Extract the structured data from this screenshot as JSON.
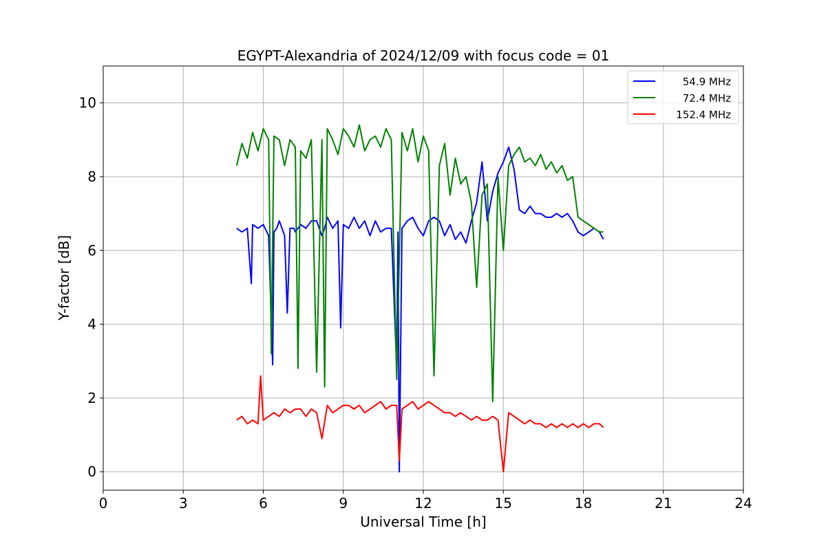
{
  "chart_data": {
    "type": "line",
    "title": "EGYPT-Alexandria of 2024/12/09 with focus code = 01",
    "xlabel": "Universal Time [h]",
    "ylabel": "Y-factor [dB]",
    "xlim": [
      0,
      24
    ],
    "ylim": [
      -0.5,
      11
    ],
    "xticks": [
      0,
      3,
      6,
      9,
      12,
      15,
      18,
      21,
      24
    ],
    "yticks": [
      0,
      2,
      4,
      6,
      8,
      10
    ],
    "grid": true,
    "legend_position": "top-right",
    "series": [
      {
        "name": "54.9 MHz",
        "color": "#0000ff",
        "x": [
          5.0,
          5.2,
          5.4,
          5.55,
          5.6,
          5.8,
          6.0,
          6.2,
          6.35,
          6.4,
          6.5,
          6.6,
          6.8,
          6.9,
          7.0,
          7.15,
          7.2,
          7.4,
          7.6,
          7.8,
          8.0,
          8.2,
          8.3,
          8.4,
          8.6,
          8.8,
          8.9,
          9.0,
          9.2,
          9.4,
          9.6,
          9.8,
          10.0,
          10.2,
          10.4,
          10.6,
          10.8,
          11.0,
          11.05,
          11.1,
          11.2,
          11.4,
          11.6,
          11.8,
          12.0,
          12.2,
          12.4,
          12.6,
          12.8,
          13.0,
          13.2,
          13.4,
          13.6,
          13.8,
          14.0,
          14.2,
          14.4,
          14.6,
          14.8,
          15.0,
          15.2,
          15.4,
          15.6,
          15.8,
          16.0,
          16.2,
          16.4,
          16.6,
          16.8,
          17.0,
          17.2,
          17.4,
          17.6,
          17.8,
          18.0,
          18.2,
          18.4,
          18.6,
          18.75
        ],
        "y": [
          6.6,
          6.5,
          6.6,
          5.1,
          6.7,
          6.6,
          6.7,
          6.4,
          2.9,
          6.5,
          6.6,
          6.8,
          6.4,
          4.3,
          6.6,
          6.6,
          6.5,
          6.7,
          6.6,
          6.8,
          6.8,
          6.4,
          6.6,
          6.9,
          6.6,
          6.8,
          3.9,
          6.7,
          6.6,
          6.9,
          6.6,
          6.8,
          6.4,
          6.8,
          6.5,
          6.6,
          6.6,
          2.8,
          6.5,
          0.0,
          6.6,
          6.8,
          6.9,
          6.6,
          6.4,
          6.8,
          6.9,
          6.8,
          6.4,
          6.7,
          6.3,
          6.5,
          6.2,
          6.8,
          7.3,
          8.4,
          6.8,
          7.6,
          8.1,
          8.4,
          8.8,
          8.2,
          7.1,
          7.0,
          7.2,
          7.0,
          7.0,
          6.9,
          6.9,
          7.0,
          6.9,
          7.0,
          6.8,
          6.5,
          6.4,
          6.5,
          6.6,
          6.5,
          6.3
        ]
      },
      {
        "name": "72.4 MHz",
        "color": "#008000",
        "x": [
          5.0,
          5.2,
          5.4,
          5.6,
          5.8,
          6.0,
          6.2,
          6.3,
          6.4,
          6.6,
          6.8,
          7.0,
          7.2,
          7.3,
          7.4,
          7.6,
          7.8,
          8.0,
          8.2,
          8.3,
          8.4,
          8.6,
          8.8,
          9.0,
          9.2,
          9.4,
          9.6,
          9.8,
          10.0,
          10.2,
          10.4,
          10.6,
          10.8,
          11.0,
          11.2,
          11.4,
          11.6,
          11.8,
          12.0,
          12.2,
          12.4,
          12.6,
          12.8,
          13.0,
          13.2,
          13.4,
          13.6,
          13.8,
          14.0,
          14.2,
          14.4,
          14.6,
          14.8,
          15.0,
          15.2,
          15.4,
          15.6,
          15.8,
          16.0,
          16.2,
          16.4,
          16.6,
          16.8,
          17.0,
          17.2,
          17.4,
          17.6,
          17.8,
          18.0,
          18.2,
          18.4,
          18.6,
          18.75
        ],
        "y": [
          8.3,
          8.9,
          8.5,
          9.2,
          8.7,
          9.3,
          9.0,
          3.2,
          9.1,
          9.0,
          8.3,
          9.0,
          8.8,
          2.8,
          8.7,
          8.5,
          9.0,
          2.7,
          9.0,
          2.3,
          9.3,
          9.0,
          8.6,
          9.3,
          9.1,
          8.8,
          9.4,
          8.7,
          9.0,
          9.1,
          8.8,
          9.3,
          9.0,
          2.5,
          9.2,
          8.7,
          9.3,
          8.4,
          9.1,
          8.7,
          2.6,
          8.3,
          8.9,
          7.5,
          8.5,
          7.8,
          8.0,
          7.3,
          5.0,
          7.5,
          7.8,
          1.9,
          8.0,
          6.0,
          8.3,
          8.6,
          8.8,
          8.4,
          8.5,
          8.3,
          8.6,
          8.2,
          8.4,
          8.1,
          8.3,
          7.9,
          8.0,
          6.9,
          6.8,
          6.7,
          6.6,
          6.5,
          6.5
        ]
      },
      {
        "name": "152.4 MHz",
        "color": "#ff0000",
        "x": [
          5.0,
          5.2,
          5.4,
          5.6,
          5.8,
          5.9,
          6.0,
          6.2,
          6.4,
          6.6,
          6.8,
          7.0,
          7.2,
          7.4,
          7.6,
          7.8,
          8.0,
          8.2,
          8.4,
          8.6,
          8.8,
          9.0,
          9.2,
          9.4,
          9.6,
          9.8,
          10.0,
          10.2,
          10.4,
          10.6,
          10.8,
          11.0,
          11.1,
          11.2,
          11.4,
          11.6,
          11.8,
          12.0,
          12.2,
          12.4,
          12.6,
          12.8,
          13.0,
          13.2,
          13.4,
          13.6,
          13.8,
          14.0,
          14.2,
          14.4,
          14.6,
          14.8,
          15.0,
          15.2,
          15.4,
          15.6,
          15.8,
          16.0,
          16.2,
          16.4,
          16.6,
          16.8,
          17.0,
          17.2,
          17.4,
          17.6,
          17.8,
          18.0,
          18.2,
          18.4,
          18.6,
          18.75
        ],
        "y": [
          1.4,
          1.5,
          1.3,
          1.4,
          1.3,
          2.6,
          1.4,
          1.5,
          1.6,
          1.5,
          1.7,
          1.6,
          1.7,
          1.7,
          1.5,
          1.7,
          1.6,
          0.9,
          1.8,
          1.6,
          1.7,
          1.8,
          1.8,
          1.7,
          1.8,
          1.6,
          1.7,
          1.8,
          1.9,
          1.7,
          1.8,
          1.8,
          0.3,
          1.7,
          1.8,
          1.9,
          1.7,
          1.8,
          1.9,
          1.8,
          1.7,
          1.6,
          1.6,
          1.5,
          1.6,
          1.5,
          1.4,
          1.5,
          1.4,
          1.4,
          1.5,
          1.4,
          0.0,
          1.6,
          1.5,
          1.4,
          1.3,
          1.4,
          1.3,
          1.3,
          1.2,
          1.3,
          1.2,
          1.3,
          1.2,
          1.3,
          1.2,
          1.3,
          1.2,
          1.3,
          1.3,
          1.2
        ]
      }
    ]
  }
}
